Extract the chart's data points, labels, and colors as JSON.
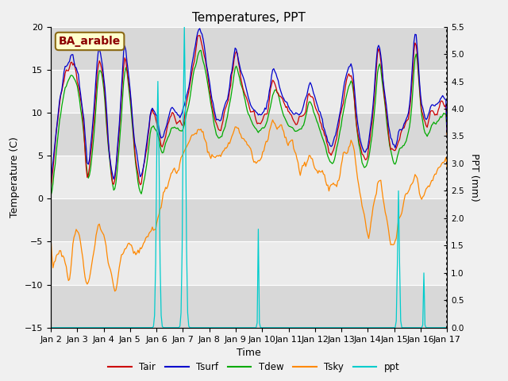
{
  "title": "Temperatures, PPT",
  "xlabel": "Time",
  "ylabel_left": "Temperature (C)",
  "ylabel_right": "PPT (mm)",
  "legend_label": "BA_arable",
  "ylim_left": [
    -15,
    20
  ],
  "ylim_right": [
    0.0,
    5.5
  ],
  "yticks_left": [
    -15,
    -10,
    -5,
    0,
    5,
    10,
    15,
    20
  ],
  "yticks_right": [
    0.0,
    0.5,
    1.0,
    1.5,
    2.0,
    2.5,
    3.0,
    3.5,
    4.0,
    4.5,
    5.0,
    5.5
  ],
  "colors": {
    "Tair": "#cc0000",
    "Tsurf": "#0000cc",
    "Tdew": "#00aa00",
    "Tsky": "#ff8800",
    "ppt": "#00cccc"
  },
  "bg_color": "#e8e8e8",
  "band_light": "#ebebeb",
  "band_dark": "#d0d0d0",
  "n_points": 360,
  "days": 15
}
